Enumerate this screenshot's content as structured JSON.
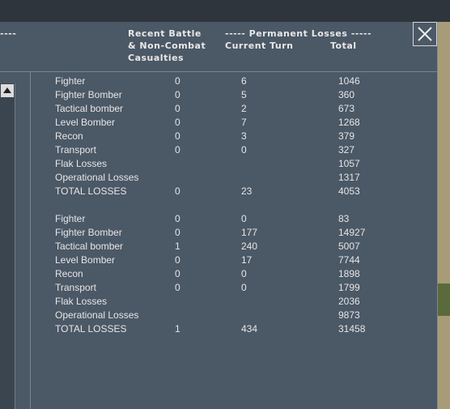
{
  "header": {
    "left_dashes": "----",
    "recent_lines": [
      "Recent Battle",
      "& Non-Combat",
      "Casualties"
    ],
    "permanent": "----- Permanent Losses -----",
    "current_turn": "Current Turn",
    "total": "Total"
  },
  "tables": [
    {
      "rows": [
        {
          "label": "Fighter",
          "recent": 0,
          "current": 6,
          "total": 1046
        },
        {
          "label": "Fighter Bomber",
          "recent": 0,
          "current": 5,
          "total": 360
        },
        {
          "label": "Tactical bomber",
          "recent": 0,
          "current": 2,
          "total": 673
        },
        {
          "label": "Level Bomber",
          "recent": 0,
          "current": 7,
          "total": 1268
        },
        {
          "label": "Recon",
          "recent": 0,
          "current": 3,
          "total": 379
        },
        {
          "label": "Transport",
          "recent": 0,
          "current": 0,
          "total": 327
        },
        {
          "label": "Flak Losses",
          "total": 1057
        },
        {
          "label": "Operational Losses",
          "total": 1317
        },
        {
          "label": "TOTAL LOSSES",
          "recent": 0,
          "current": 23,
          "total": 4053
        }
      ]
    },
    {
      "rows": [
        {
          "label": "Fighter",
          "recent": 0,
          "current": 0,
          "total": 83
        },
        {
          "label": "Fighter Bomber",
          "recent": 0,
          "current": 177,
          "total": 14927
        },
        {
          "label": "Tactical bomber",
          "recent": 1,
          "current": 240,
          "total": 5007
        },
        {
          "label": "Level Bomber",
          "recent": 0,
          "current": 17,
          "total": 7744
        },
        {
          "label": "Recon",
          "recent": 0,
          "current": 0,
          "total": 1898
        },
        {
          "label": "Transport",
          "recent": 0,
          "current": 0,
          "total": 1799
        },
        {
          "label": "Flak Losses",
          "total": 2036
        },
        {
          "label": "Operational Losses",
          "total": 9873
        },
        {
          "label": "TOTAL LOSSES",
          "recent": 1,
          "current": 434,
          "total": 31458
        }
      ]
    }
  ]
}
